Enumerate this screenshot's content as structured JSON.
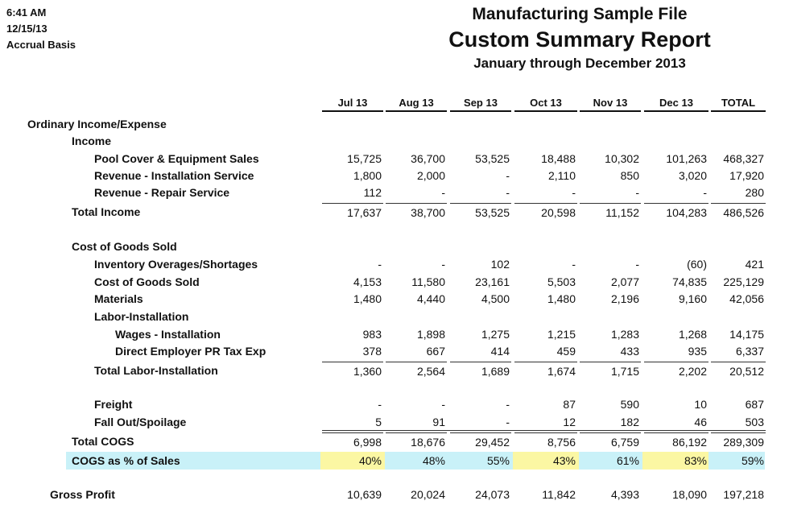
{
  "meta": {
    "time": "6:41 AM",
    "date": "12/15/13",
    "basis": "Accrual Basis"
  },
  "header": {
    "company": "Manufacturing Sample File",
    "report_title": "Custom Summary Report",
    "period": "January through December 2013"
  },
  "columns": [
    "Jul 13",
    "Aug 13",
    "Sep 13",
    "Oct 13",
    "Nov 13",
    "Dec 13",
    "TOTAL"
  ],
  "rows": {
    "ordinary": {
      "label": "Ordinary Income/Expense"
    },
    "income": {
      "label": "Income"
    },
    "pool_cover": {
      "label": "Pool Cover & Equipment Sales",
      "values": [
        "15,725",
        "36,700",
        "53,525",
        "18,488",
        "10,302",
        "101,263",
        "468,327"
      ]
    },
    "rev_install": {
      "label": "Revenue - Installation Service",
      "values": [
        "1,800",
        "2,000",
        "-",
        "2,110",
        "850",
        "3,020",
        "17,920"
      ]
    },
    "rev_repair": {
      "label": "Revenue - Repair Service",
      "values": [
        "112",
        "-",
        "-",
        "-",
        "-",
        "-",
        "280"
      ]
    },
    "total_income": {
      "label": "Total Income",
      "values": [
        "17,637",
        "38,700",
        "53,525",
        "20,598",
        "11,152",
        "104,283",
        "486,526"
      ]
    },
    "cogs_header": {
      "label": "Cost of Goods Sold"
    },
    "inv_over": {
      "label": "Inventory Overages/Shortages",
      "values": [
        "-",
        "-",
        "102",
        "-",
        "-",
        "(60)",
        "421"
      ]
    },
    "cogs": {
      "label": "Cost of Goods Sold",
      "values": [
        "4,153",
        "11,580",
        "23,161",
        "5,503",
        "2,077",
        "74,835",
        "225,129"
      ]
    },
    "materials": {
      "label": "Materials",
      "values": [
        "1,480",
        "4,440",
        "4,500",
        "1,480",
        "2,196",
        "9,160",
        "42,056"
      ]
    },
    "labor_header": {
      "label": "Labor-Installation"
    },
    "wages": {
      "label": "Wages - Installation",
      "values": [
        "983",
        "1,898",
        "1,275",
        "1,215",
        "1,283",
        "1,268",
        "14,175"
      ]
    },
    "direct_pr": {
      "label": "Direct Employer PR Tax Exp",
      "values": [
        "378",
        "667",
        "414",
        "459",
        "433",
        "935",
        "6,337"
      ]
    },
    "total_labor": {
      "label": "Total Labor-Installation",
      "values": [
        "1,360",
        "2,564",
        "1,689",
        "1,674",
        "1,715",
        "2,202",
        "20,512"
      ]
    },
    "freight": {
      "label": "Freight",
      "values": [
        "-",
        "-",
        "-",
        "87",
        "590",
        "10",
        "687"
      ]
    },
    "fallout": {
      "label": "Fall Out/Spoilage",
      "values": [
        "5",
        "91",
        "-",
        "12",
        "182",
        "46",
        "503"
      ]
    },
    "total_cogs": {
      "label": "Total COGS",
      "values": [
        "6,998",
        "18,676",
        "29,452",
        "8,756",
        "6,759",
        "86,192",
        "289,309"
      ]
    },
    "cogs_pct": {
      "label": "COGS as % of Sales",
      "values": [
        "40%",
        "48%",
        "55%",
        "43%",
        "61%",
        "83%",
        "59%"
      ]
    },
    "gross_profit": {
      "label": "Gross Profit",
      "values": [
        "10,639",
        "20,024",
        "24,073",
        "11,842",
        "4,393",
        "18,090",
        "197,218"
      ]
    }
  },
  "colors": {
    "highlight_row": "#c9f1f8",
    "highlight_cell": "#fbf7a3"
  }
}
